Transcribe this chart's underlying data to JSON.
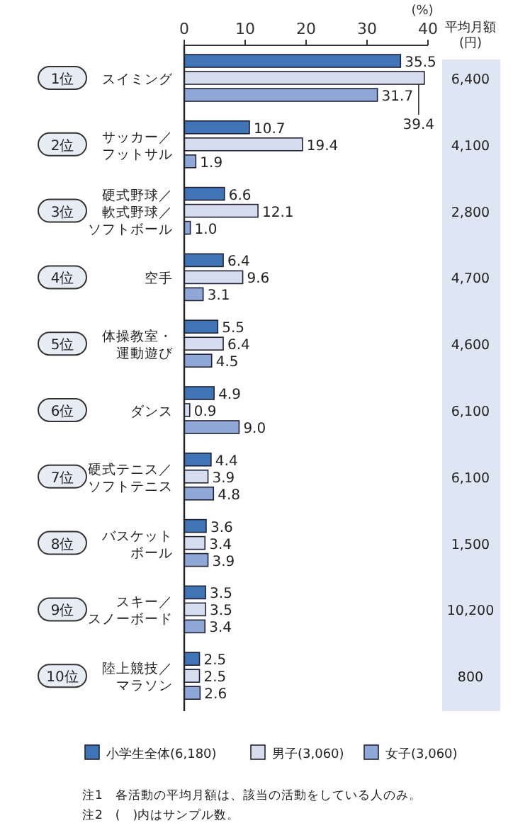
{
  "chart_data": {
    "type": "bar",
    "orientation": "horizontal",
    "xlabel": "(%)",
    "categories": [
      "スイミング",
      "サッカー／フットサル",
      "硬式野球／軟式野球／ソフトボール",
      "空手",
      "体操教室・運動遊び",
      "ダンス",
      "硬式テニス／ソフトテニス",
      "バスケットボール",
      "スキー／スノーボード",
      "陸上競技／マラソン"
    ],
    "series": [
      {
        "name": "小学生全体(6,180)",
        "color": "#3f74b6",
        "values": [
          35.5,
          10.7,
          6.6,
          6.4,
          5.5,
          4.9,
          4.4,
          3.6,
          3.5,
          2.5
        ],
        "value_labels": [
          "35.5",
          "10.7",
          "6.6",
          "6.4",
          "5.5",
          "4.9",
          "4.4",
          "3.6",
          "3.5",
          "2.5"
        ]
      },
      {
        "name": "男子(3,060)",
        "color": "#d6ddef",
        "values": [
          39.4,
          19.4,
          12.1,
          9.6,
          6.4,
          0.9,
          3.9,
          3.4,
          3.5,
          2.5
        ],
        "value_labels": [
          "39.4",
          "19.4",
          "12.1",
          "9.6",
          "6.4",
          "0.9",
          "3.9",
          "3.4",
          "3.5",
          "2.5"
        ]
      },
      {
        "name": "女子(3,060)",
        "color": "#8fa8d8",
        "values": [
          31.7,
          1.9,
          1.0,
          3.1,
          4.5,
          9.0,
          4.8,
          3.9,
          3.4,
          2.6
        ],
        "value_labels": [
          "31.7",
          "1.9",
          "1.0",
          "3.1",
          "4.5",
          "9.0",
          "4.8",
          "3.9",
          "3.4",
          "2.6"
        ]
      }
    ],
    "xlim": [
      0,
      40
    ],
    "xticks": [
      0,
      10,
      20,
      30,
      40
    ],
    "legend": "bottom",
    "annotations": [
      "1位",
      "2位",
      "3位",
      "4位",
      "5位",
      "6位",
      "7位",
      "8位",
      "9位",
      "10位",
      "平均月額(円)",
      "6,400",
      "4,100",
      "2,800",
      "4,700",
      "4,600",
      "6,100",
      "6,100",
      "1,500",
      "10,200",
      "800",
      "注1　各活動の平均月額は、該当の活動をしている人のみ。",
      "注2　(　)内はサンプル数。"
    ]
  }
}
